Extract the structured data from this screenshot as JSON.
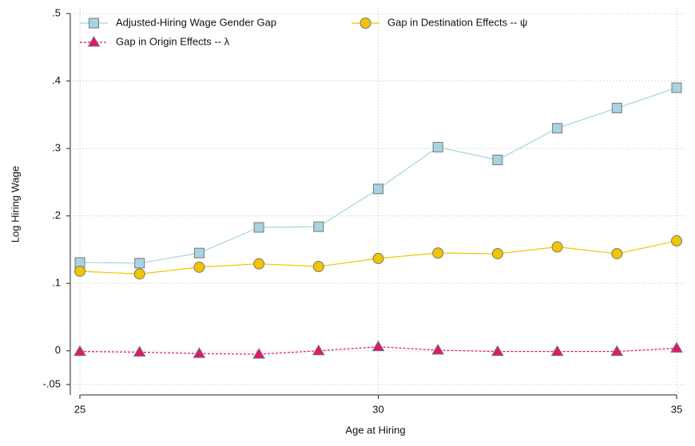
{
  "chart_data": {
    "type": "line",
    "x_label": "Age at Hiring",
    "y_label": "Log Hiring Wage",
    "x": [
      25,
      26,
      27,
      28,
      29,
      30,
      31,
      32,
      33,
      34,
      35
    ],
    "series": [
      {
        "name": "Adjusted-Hiring Wage Gender Gap",
        "color": "#a8d4e0",
        "marker": "square",
        "values": [
          0.131,
          0.13,
          0.145,
          0.183,
          0.184,
          0.24,
          0.302,
          0.283,
          0.33,
          0.36,
          0.39
        ]
      },
      {
        "name": "Gap in Destination Effects -- ψ",
        "color": "#f2c400",
        "marker": "circle",
        "values": [
          0.118,
          0.114,
          0.124,
          0.129,
          0.125,
          0.137,
          0.145,
          0.144,
          0.154,
          0.144,
          0.163
        ]
      },
      {
        "name": "Gap in Origin Effects -- λ",
        "color": "#e0186c",
        "marker": "triangle",
        "dashed": true,
        "values": [
          -0.001,
          -0.002,
          -0.004,
          -0.005,
          0.0,
          0.006,
          0.001,
          -0.001,
          -0.001,
          -0.001,
          0.004
        ]
      }
    ],
    "xlim": [
      25,
      35
    ],
    "xticks": [
      25,
      30,
      35
    ],
    "ylim": [
      -0.05,
      0.5
    ],
    "yticks": [
      {
        "value": -0.05,
        "label": "-.05"
      },
      0,
      {
        "value": 0.1,
        "label": ".1"
      },
      {
        "value": 0.2,
        "label": ".2"
      },
      {
        "value": 0.3,
        "label": ".3"
      },
      {
        "value": 0.4,
        "label": ".4"
      },
      {
        "value": 0.5,
        "label": ".5"
      }
    ],
    "grid": true
  }
}
